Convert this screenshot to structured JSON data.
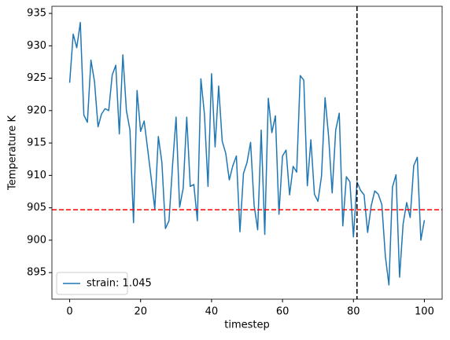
{
  "chart_data": {
    "type": "line",
    "xlabel": "timestep",
    "ylabel": "Temperature K",
    "x": [
      0,
      1,
      2,
      3,
      4,
      5,
      6,
      7,
      8,
      9,
      10,
      11,
      12,
      13,
      14,
      15,
      16,
      17,
      18,
      19,
      20,
      21,
      22,
      23,
      24,
      25,
      26,
      27,
      28,
      29,
      30,
      31,
      32,
      33,
      34,
      35,
      36,
      37,
      38,
      39,
      40,
      41,
      42,
      43,
      44,
      45,
      46,
      47,
      48,
      49,
      50,
      51,
      52,
      53,
      54,
      55,
      56,
      57,
      58,
      59,
      60,
      61,
      62,
      63,
      64,
      65,
      66,
      67,
      68,
      69,
      70,
      71,
      72,
      73,
      74,
      75,
      76,
      77,
      78,
      79,
      80,
      81,
      82,
      83,
      84,
      85,
      86,
      87,
      88,
      89,
      90,
      91,
      92,
      93,
      94,
      95,
      96,
      97,
      98,
      99,
      100
    ],
    "series": [
      {
        "name": "strain: 1.045",
        "color": "#1f77b4",
        "values": [
          924.3,
          931.8,
          929.7,
          933.6,
          919.3,
          918.2,
          927.8,
          924.5,
          917.5,
          919.5,
          920.3,
          920.0,
          925.5,
          927.0,
          916.4,
          928.6,
          920.0,
          917.0,
          902.7,
          923.1,
          916.8,
          918.4,
          914.0,
          909.5,
          904.8,
          916.0,
          912.0,
          901.8,
          903.0,
          911.5,
          919.0,
          905.1,
          908.0,
          919.0,
          908.3,
          908.6,
          903.0,
          924.9,
          919.4,
          908.3,
          925.7,
          914.4,
          923.8,
          915.3,
          913.4,
          909.3,
          911.5,
          913.0,
          901.3,
          910.3,
          912.0,
          915.1,
          905.4,
          901.6,
          917.0,
          900.9,
          921.9,
          916.6,
          919.2,
          904.0,
          913.0,
          913.9,
          907.0,
          911.4,
          910.5,
          925.4,
          924.7,
          908.4,
          915.5,
          907.1,
          906.0,
          909.9,
          922.0,
          916.0,
          907.3,
          917.0,
          919.6,
          902.2,
          909.8,
          909.0,
          900.5,
          909.0,
          907.7,
          907.0,
          901.2,
          905.3,
          907.6,
          907.1,
          905.5,
          897.5,
          893.1,
          908.2,
          910.1,
          894.3,
          902.5,
          905.8,
          903.5,
          911.5,
          912.8,
          900.0,
          903.1
        ]
      }
    ],
    "hline": {
      "value": 904.7,
      "color": "#ff0000"
    },
    "vline": {
      "value": 81,
      "color": "#000000"
    },
    "xlim": [
      -5,
      105
    ],
    "xticks": [
      0,
      20,
      40,
      60,
      80,
      100
    ],
    "ylim": [
      890.9,
      936.1
    ],
    "yticks": [
      895,
      900,
      905,
      910,
      915,
      920,
      925,
      930,
      935
    ],
    "legend": "lower left"
  }
}
